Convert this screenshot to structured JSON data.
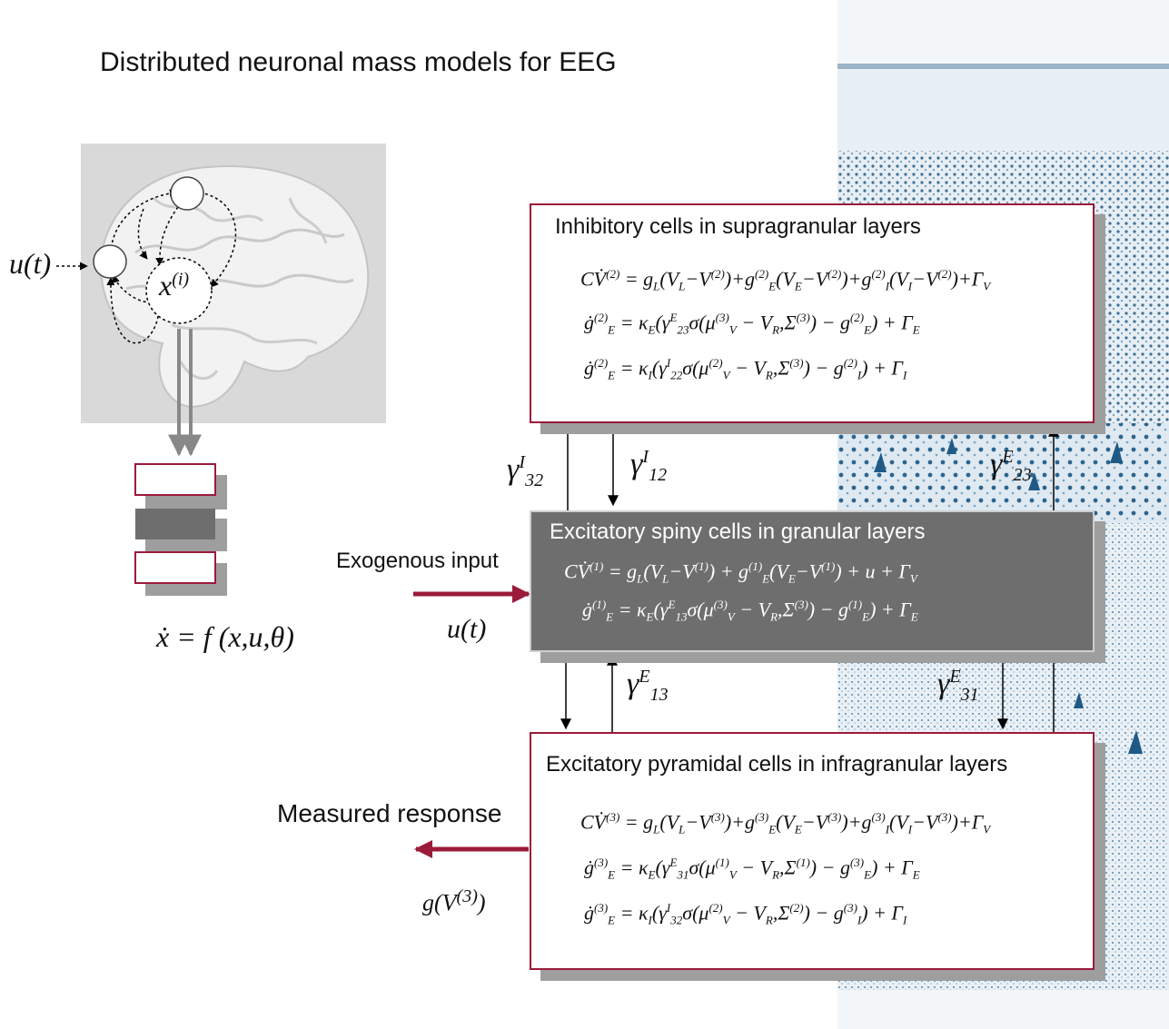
{
  "title": "Distributed neuronal mass models for EEG",
  "brain": {
    "input_label": "u(t)",
    "state_label": "x(i)",
    "equation": "ẋ = f (x,u,θ)"
  },
  "boxes": {
    "inhibitory": {
      "title": "Inhibitory cells in supragranular layers",
      "equations": [
        "CV̇(2) = gL(VL−V(2))+gE(2)(VE−V(2))+gI(2)(VI−V(2))+ΓV",
        "ġE(2) = κE(γ23E σ(μV(3) − VR,Σ(3)) − gE(2)) + ΓE",
        "ġE(2) = κI(γ22I σ(μV(2) − VR,Σ(3)) − gI(2)) + ΓI"
      ]
    },
    "spiny": {
      "title": "Excitatory spiny cells in granular layers",
      "equations": [
        "CV̇(1) = gL(VL−V(1)) + gE(1)(VE−V(1)) + u + ΓV",
        "ġE(1) = κE(γ13E σ(μV(3) − VR,Σ(3)) − gE(1)) + ΓE"
      ]
    },
    "pyramidal": {
      "title": "Excitatory pyramidal cells in infragranular layers",
      "equations": [
        "CV̇(3) = gL(VL−V(3))+gE(3)(VE−V(3))+gI(3)(VI−V(3))+ΓV",
        "ġE(3) = κE(γ31E σ(μV(1) − VR,Σ(1)) − gE(3)) + ΓE",
        "ġE(3) = κI(γ32I σ(μV(2) − VR,Σ(2)) − gI(3)) + ΓI"
      ]
    }
  },
  "connections": {
    "g32I": "γ32I",
    "g12I": "γ12I",
    "g23E": "γ23E",
    "g13E": "γ13E",
    "g31E": "γ31E"
  },
  "io": {
    "exogenous_label": "Exogenous input",
    "exogenous_symbol": "u(t)",
    "response_label": "Measured response",
    "response_symbol": "g(V(3))"
  },
  "colors": {
    "accent": "#9b1b3a",
    "gray_box": "#6e6e6e",
    "shadow": "#9e9e9e",
    "panel": "#d9d9d9"
  }
}
